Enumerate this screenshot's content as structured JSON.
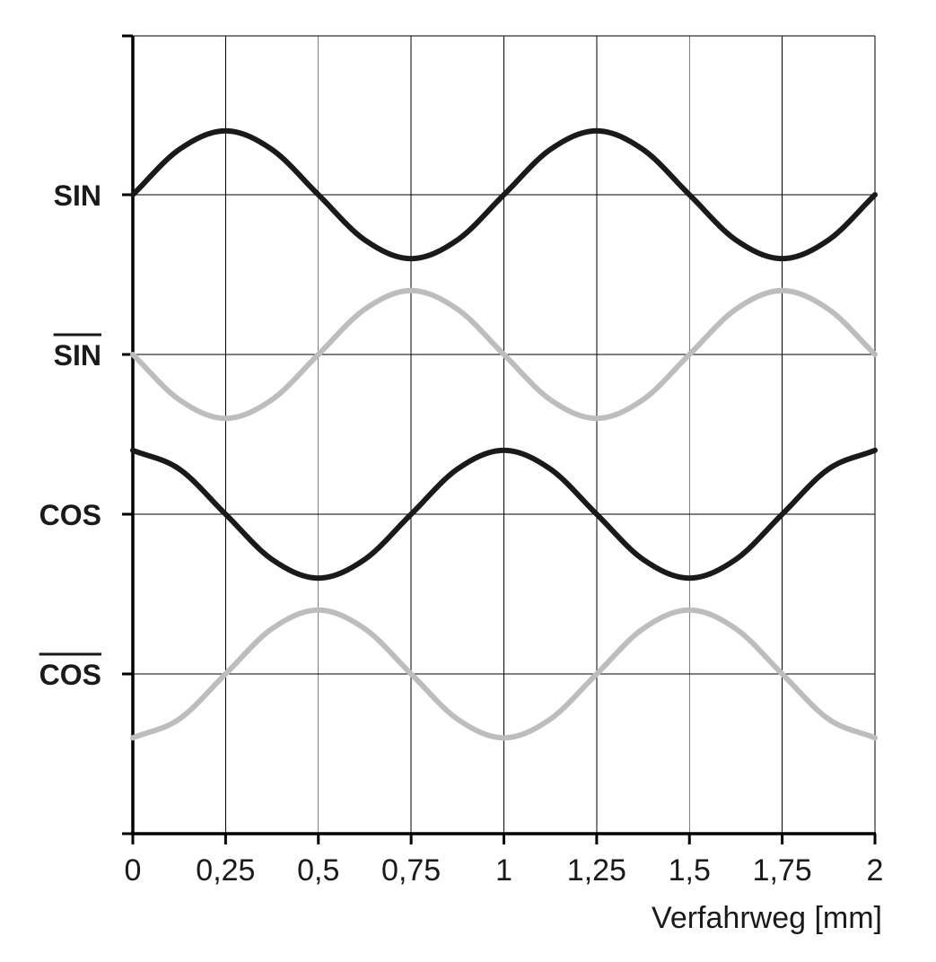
{
  "chart_data": {
    "type": "line",
    "title": "",
    "xlabel": "Verfahrweg [mm]",
    "ylabel": "",
    "xlim": [
      0,
      2
    ],
    "x_ticks": [
      "0",
      "0,25",
      "0,5",
      "0,75",
      "1",
      "1,25",
      "1,5",
      "1,75",
      "2"
    ],
    "x_tick_values": [
      0,
      0.25,
      0.5,
      0.75,
      1,
      1.25,
      1.5,
      1.75,
      2
    ],
    "grid": true,
    "legend": "none",
    "y_channels": [
      {
        "label": "SIN",
        "overline": false
      },
      {
        "label": "SIN",
        "overline": true
      },
      {
        "label": "COS",
        "overline": false
      },
      {
        "label": "COS",
        "overline": true
      }
    ],
    "signal_period_mm": 1,
    "amplitude": 0.4,
    "series": [
      {
        "name": "SIN",
        "color": "#1a1a1a",
        "x": [
          0,
          0.125,
          0.25,
          0.375,
          0.5,
          0.625,
          0.75,
          0.875,
          1,
          1.125,
          1.25,
          1.375,
          1.5,
          1.625,
          1.75,
          1.875,
          2
        ],
        "y": [
          0,
          0.283,
          0.4,
          0.283,
          0,
          -0.283,
          -0.4,
          -0.283,
          0,
          0.283,
          0.4,
          0.283,
          0,
          -0.283,
          -0.4,
          -0.283,
          0
        ]
      },
      {
        "name": "SIN (inverted)",
        "color": "#bdbdbd",
        "x": [
          0,
          0.125,
          0.25,
          0.375,
          0.5,
          0.625,
          0.75,
          0.875,
          1,
          1.125,
          1.25,
          1.375,
          1.5,
          1.625,
          1.75,
          1.875,
          2
        ],
        "y": [
          0,
          -0.283,
          -0.4,
          -0.283,
          0,
          0.283,
          0.4,
          0.283,
          0,
          -0.283,
          -0.4,
          -0.283,
          0,
          0.283,
          0.4,
          0.283,
          0
        ]
      },
      {
        "name": "COS",
        "color": "#1a1a1a",
        "x": [
          0,
          0.125,
          0.25,
          0.375,
          0.5,
          0.625,
          0.75,
          0.875,
          1,
          1.125,
          1.25,
          1.375,
          1.5,
          1.625,
          1.75,
          1.875,
          2
        ],
        "y": [
          0.4,
          0.283,
          0,
          -0.283,
          -0.4,
          -0.283,
          0,
          0.283,
          0.4,
          0.283,
          0,
          -0.283,
          -0.4,
          -0.283,
          0,
          0.283,
          0.4
        ]
      },
      {
        "name": "COS (inverted)",
        "color": "#bdbdbd",
        "x": [
          0,
          0.125,
          0.25,
          0.375,
          0.5,
          0.625,
          0.75,
          0.875,
          1,
          1.125,
          1.25,
          1.375,
          1.5,
          1.625,
          1.75,
          1.875,
          2
        ],
        "y": [
          -0.4,
          -0.283,
          0,
          0.283,
          0.4,
          0.283,
          0,
          -0.283,
          -0.4,
          -0.283,
          0,
          0.283,
          0.4,
          0.283,
          0,
          -0.283,
          -0.4
        ]
      }
    ]
  }
}
